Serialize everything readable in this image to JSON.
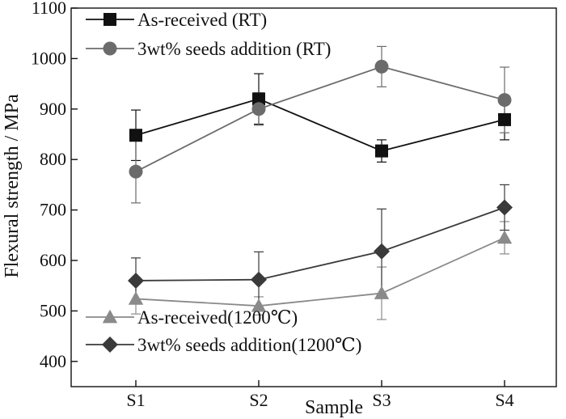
{
  "chart_data": {
    "type": "line",
    "title": "",
    "xlabel": "Sample",
    "ylabel": "Flexural strength / MPa",
    "categories": [
      "S1",
      "S2",
      "S3",
      "S4"
    ],
    "ylim": [
      350,
      1100
    ],
    "yticks": [
      400,
      500,
      600,
      700,
      800,
      900,
      1000,
      1100
    ],
    "grid": false,
    "legend_placement": [
      "top-left",
      "bottom-left"
    ],
    "series": [
      {
        "name": "As-received (RT)",
        "marker": "square",
        "color": "#111111",
        "values": [
          848,
          920,
          817,
          879
        ],
        "error": [
          50,
          50,
          22,
          40
        ]
      },
      {
        "name": "3wt% seeds addition (RT)",
        "marker": "circle",
        "color": "#6b6b6b",
        "values": [
          776,
          900,
          984,
          918
        ],
        "error": [
          62,
          32,
          40,
          65
        ]
      },
      {
        "name": "As-received(1200℃)",
        "marker": "triangle",
        "color": "#8a8a8a",
        "values": [
          524,
          510,
          535,
          645
        ],
        "error": [
          30,
          18,
          52,
          32
        ]
      },
      {
        "name": "3wt% seeds addition(1200℃)",
        "marker": "diamond",
        "color": "#3a3a3a",
        "values": [
          560,
          562,
          618,
          705
        ],
        "error": [
          45,
          55,
          84,
          45
        ]
      }
    ]
  }
}
